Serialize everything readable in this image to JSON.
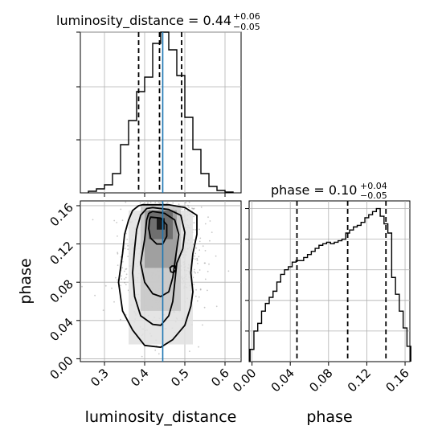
{
  "chart_data": {
    "type": "corner",
    "parameters": [
      "luminosity_distance",
      "phase"
    ],
    "truth": {
      "luminosity_distance": 0.445
    },
    "panels": [
      {
        "id": "luminosity_distance-hist",
        "type": "histogram",
        "title_main": "luminosity_distance = 0.44",
        "title_plus": "+0.06",
        "title_minus": "−0.05",
        "xlim": [
          0.24,
          0.64
        ],
        "ylim": [
          0,
          1.0
        ],
        "bin_edges": [
          0.26,
          0.28,
          0.3,
          0.32,
          0.34,
          0.36,
          0.38,
          0.4,
          0.42,
          0.44,
          0.46,
          0.48,
          0.5,
          0.52,
          0.54,
          0.56,
          0.58,
          0.6,
          0.62
        ],
        "counts": [
          0.01,
          0.025,
          0.05,
          0.12,
          0.3,
          0.45,
          0.63,
          0.72,
          0.93,
          1.0,
          0.89,
          0.73,
          0.47,
          0.27,
          0.12,
          0.04,
          0.015,
          0.005
        ],
        "quantiles": [
          0.385,
          0.437,
          0.492
        ]
      },
      {
        "id": "phase-hist",
        "type": "histogram",
        "title_main": "phase = 0.10",
        "title_plus": "+0.04",
        "title_minus": "−0.05",
        "xlim": [
          -0.003,
          0.165
        ],
        "ylim": [
          0,
          1.05
        ],
        "bin_edges": [
          -0.002,
          0.002,
          0.006,
          0.01,
          0.014,
          0.018,
          0.022,
          0.026,
          0.03,
          0.034,
          0.038,
          0.042,
          0.046,
          0.05,
          0.054,
          0.058,
          0.062,
          0.066,
          0.07,
          0.074,
          0.078,
          0.082,
          0.086,
          0.09,
          0.094,
          0.098,
          0.102,
          0.106,
          0.11,
          0.114,
          0.118,
          0.122,
          0.126,
          0.13,
          0.134,
          0.138,
          0.142,
          0.146,
          0.15,
          0.154,
          0.158,
          0.162,
          0.166
        ],
        "counts": [
          0.08,
          0.2,
          0.25,
          0.33,
          0.38,
          0.42,
          0.46,
          0.52,
          0.57,
          0.6,
          0.62,
          0.65,
          0.66,
          0.66,
          0.68,
          0.7,
          0.72,
          0.74,
          0.76,
          0.77,
          0.78,
          0.77,
          0.78,
          0.79,
          0.8,
          0.84,
          0.86,
          0.88,
          0.89,
          0.91,
          0.94,
          0.96,
          0.98,
          1.0,
          0.95,
          0.9,
          0.84,
          0.55,
          0.44,
          0.33,
          0.22,
          0.1
        ],
        "quantiles": [
          0.047,
          0.1,
          0.14
        ]
      },
      {
        "id": "2d-density",
        "type": "scatter_density",
        "xparam": "luminosity_distance",
        "yparam": "phase",
        "xlim": [
          0.24,
          0.64
        ],
        "ylim": [
          -0.003,
          0.165
        ],
        "contours": [
          {
            "level": "outer",
            "x": [
              0.41,
              0.46,
              0.5,
              0.53,
              0.53,
              0.52,
              0.515,
              0.52,
              0.515,
              0.5,
              0.47,
              0.44,
              0.4,
              0.37,
              0.345,
              0.335,
              0.345,
              0.35,
              0.36,
              0.37,
              0.385,
              0.395
            ],
            "y": [
              0.161,
              0.161,
              0.158,
              0.15,
              0.13,
              0.11,
              0.09,
              0.07,
              0.055,
              0.035,
              0.02,
              0.012,
              0.014,
              0.03,
              0.05,
              0.08,
              0.11,
              0.13,
              0.145,
              0.155,
              0.16,
              0.161
            ]
          },
          {
            "level": "mid",
            "x": [
              0.42,
              0.46,
              0.49,
              0.5,
              0.495,
              0.48,
              0.475,
              0.47,
              0.46,
              0.44,
              0.42,
              0.39,
              0.375,
              0.37,
              0.375,
              0.38,
              0.39,
              0.405
            ],
            "y": [
              0.158,
              0.156,
              0.15,
              0.132,
              0.115,
              0.1,
              0.08,
              0.06,
              0.045,
              0.035,
              0.036,
              0.045,
              0.065,
              0.09,
              0.115,
              0.135,
              0.15,
              0.157
            ]
          },
          {
            "level": "inner",
            "x": [
              0.42,
              0.45,
              0.475,
              0.485,
              0.48,
              0.475,
              0.47,
              0.46,
              0.44,
              0.42,
              0.4,
              0.39,
              0.4,
              0.405,
              0.41
            ],
            "y": [
              0.154,
              0.152,
              0.145,
              0.13,
              0.115,
              0.1,
              0.085,
              0.07,
              0.065,
              0.068,
              0.08,
              0.1,
              0.125,
              0.145,
              0.152
            ]
          },
          {
            "level": "core",
            "x": [
              0.415,
              0.44,
              0.455,
              0.455,
              0.445,
              0.43,
              0.415,
              0.41,
              0.412
            ],
            "y": [
              0.148,
              0.147,
              0.14,
              0.128,
              0.12,
              0.12,
              0.126,
              0.136,
              0.145
            ]
          },
          {
            "level": "blob",
            "x": [
              0.468,
              0.476,
              0.478,
              0.472,
              0.465,
              0.463
            ],
            "y": [
              0.097,
              0.097,
              0.093,
              0.09,
              0.091,
              0.095
            ]
          }
        ],
        "density_cells": [
          {
            "x": 0.43,
            "y": 0.135,
            "w": 0.02,
            "h": 0.012,
            "shade": 0.95
          },
          {
            "x": 0.41,
            "y": 0.125,
            "w": 0.06,
            "h": 0.03,
            "shade": 0.6
          },
          {
            "x": 0.4,
            "y": 0.095,
            "w": 0.08,
            "h": 0.06,
            "shade": 0.4
          },
          {
            "x": 0.39,
            "y": 0.05,
            "w": 0.1,
            "h": 0.11,
            "shade": 0.22
          },
          {
            "x": 0.36,
            "y": 0.015,
            "w": 0.16,
            "h": 0.14,
            "shade": 0.12
          }
        ]
      }
    ],
    "x_ticks_lum": [
      0.3,
      0.4,
      0.5,
      0.6
    ],
    "x_ticks_lum_labels": [
      "0.3",
      "0.4",
      "0.5",
      "0.6"
    ],
    "y_ticks_phase": [
      0.0,
      0.04,
      0.08,
      0.12,
      0.16
    ],
    "y_ticks_phase_labels": [
      "0.00",
      "0.04",
      "0.08",
      "0.12",
      "0.16"
    ],
    "x_ticks_phase": [
      0.0,
      0.04,
      0.08,
      0.12,
      0.16
    ],
    "x_ticks_phase_labels": [
      "0.00",
      "0.04",
      "0.08",
      "0.12",
      "0.16"
    ],
    "xlabel_left": "luminosity_distance",
    "xlabel_right": "phase",
    "ylabel": "phase",
    "grid": true,
    "colors": {
      "hist": "#000000",
      "truth": "#1f77b4",
      "grid": "#b0b0b0",
      "scatter": "#9a9a9a"
    }
  }
}
